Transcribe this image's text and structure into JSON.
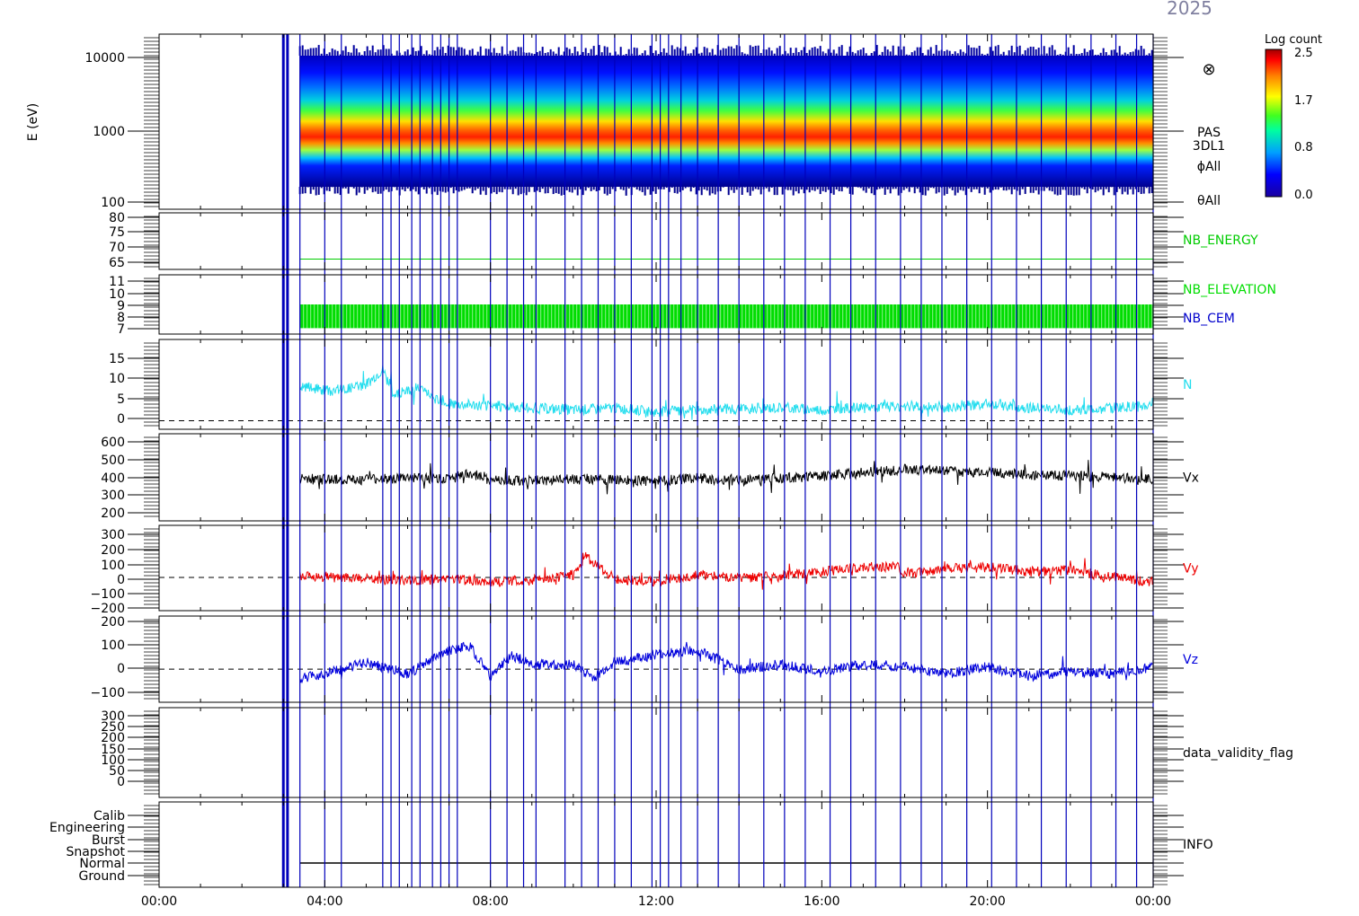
{
  "header": {
    "date_text": "2025"
  },
  "colorbar": {
    "title": "Log count",
    "ticks": [
      "2.5",
      "1.7",
      "0.8",
      "0.0"
    ]
  },
  "chart_data": {
    "type": "line",
    "x_axis": {
      "tick_labels": [
        "00:00",
        "04:00",
        "08:00",
        "12:00",
        "16:00",
        "20:00",
        "00:00"
      ],
      "range_hours": [
        0,
        24
      ]
    },
    "panels": [
      {
        "id": "spectrogram",
        "type": "heatmap",
        "ylabel": "E (eV)",
        "yscale": "log",
        "ylim": [
          100,
          15000
        ],
        "ytick_labels": [
          "10000",
          "1000",
          "100"
        ],
        "right_labels": [
          "PAS",
          "3DL1",
          "ϕAll",
          "θAll"
        ],
        "peak_energy_eV": 900,
        "data_start_hour": 3.4,
        "marker_symbol": "⊗"
      },
      {
        "id": "nb_energy",
        "ytick_labels": [
          "80",
          "75",
          "70",
          "65"
        ],
        "ylim": [
          60,
          82
        ],
        "series": [
          {
            "name": "NB_ENERGY",
            "color": "#00cc00",
            "constant_value": 64
          }
        ]
      },
      {
        "id": "nb_elevation",
        "ytick_labels": [
          "11",
          "10",
          "9",
          "8",
          "7"
        ],
        "ylim": [
          6.5,
          11.5
        ],
        "series": [
          {
            "name": "NB_ELEVATION",
            "color": "#00dd00",
            "range": [
              7,
              9
            ]
          },
          {
            "name": "NB_CEM",
            "color": "#0000cc"
          }
        ]
      },
      {
        "id": "density",
        "ytick_labels": [
          "15",
          "10",
          "5",
          "0"
        ],
        "ylim": [
          -2,
          19
        ],
        "zero_line": true,
        "series": [
          {
            "name": "N",
            "color": "#22ddee",
            "points": [
              [
                3.4,
                8
              ],
              [
                4.2,
                7
              ],
              [
                5,
                8.5
              ],
              [
                5.4,
                12
              ],
              [
                5.7,
                6
              ],
              [
                6.2,
                8
              ],
              [
                7,
                4
              ],
              [
                8,
                3.5
              ],
              [
                9,
                3
              ],
              [
                10,
                2.5
              ],
              [
                11,
                3
              ],
              [
                12,
                2
              ],
              [
                13,
                2.5
              ],
              [
                14,
                2.8
              ],
              [
                15,
                3
              ],
              [
                16,
                2.5
              ],
              [
                17,
                3
              ],
              [
                18,
                3.5
              ],
              [
                19,
                3
              ],
              [
                20,
                4
              ],
              [
                21,
                3
              ],
              [
                22,
                2.5
              ],
              [
                23,
                3
              ],
              [
                24,
                3.5
              ]
            ]
          }
        ]
      },
      {
        "id": "vx",
        "ytick_labels": [
          "600",
          "500",
          "400",
          "300",
          "200"
        ],
        "ylim": [
          160,
          650
        ],
        "series": [
          {
            "name": "Vx",
            "color": "#000000",
            "points": [
              [
                3.4,
                395
              ],
              [
                5,
                390
              ],
              [
                6,
                400
              ],
              [
                7,
                395
              ],
              [
                7.5,
                430
              ],
              [
                8,
                390
              ],
              [
                9,
                385
              ],
              [
                10,
                395
              ],
              [
                11,
                390
              ],
              [
                12,
                385
              ],
              [
                13,
                400
              ],
              [
                14,
                385
              ],
              [
                15,
                400
              ],
              [
                16,
                410
              ],
              [
                17,
                430
              ],
              [
                18,
                450
              ],
              [
                19,
                440
              ],
              [
                20,
                430
              ],
              [
                21,
                420
              ],
              [
                22,
                415
              ],
              [
                23,
                405
              ],
              [
                24,
                395
              ]
            ]
          }
        ]
      },
      {
        "id": "vy",
        "ytick_labels": [
          "300",
          "200",
          "100",
          "0",
          "−100",
          "−200"
        ],
        "ylim": [
          -230,
          360
        ],
        "zero_line": true,
        "series": [
          {
            "name": "Vy",
            "color": "#ee0000",
            "points": [
              [
                3.4,
                10
              ],
              [
                5,
                -10
              ],
              [
                6,
                -20
              ],
              [
                7,
                -10
              ],
              [
                8,
                -30
              ],
              [
                9,
                -20
              ],
              [
                10,
                20
              ],
              [
                10.3,
                140
              ],
              [
                11,
                -10
              ],
              [
                12,
                -30
              ],
              [
                13,
                20
              ],
              [
                14,
                -10
              ],
              [
                15,
                10
              ],
              [
                16,
                40
              ],
              [
                17,
                70
              ],
              [
                17.8,
                80
              ],
              [
                18,
                20
              ],
              [
                19,
                60
              ],
              [
                20,
                70
              ],
              [
                21,
                40
              ],
              [
                22,
                50
              ],
              [
                23,
                0
              ],
              [
                24,
                -30
              ]
            ]
          }
        ]
      },
      {
        "id": "vz",
        "ytick_labels": [
          "200",
          "100",
          "0",
          "−100"
        ],
        "ylim": [
          -140,
          225
        ],
        "zero_line": true,
        "series": [
          {
            "name": "Vz",
            "color": "#0000dd",
            "points": [
              [
                3.4,
                -40
              ],
              [
                4,
                -20
              ],
              [
                5,
                30
              ],
              [
                6,
                -20
              ],
              [
                7,
                80
              ],
              [
                7.5,
                100
              ],
              [
                8,
                -30
              ],
              [
                8.5,
                60
              ],
              [
                9,
                20
              ],
              [
                10,
                20
              ],
              [
                10.5,
                -40
              ],
              [
                11,
                30
              ],
              [
                12,
                60
              ],
              [
                13,
                80
              ],
              [
                14,
                0
              ],
              [
                15,
                20
              ],
              [
                16,
                -10
              ],
              [
                17,
                20
              ],
              [
                18,
                10
              ],
              [
                19,
                -20
              ],
              [
                20,
                10
              ],
              [
                21,
                -30
              ],
              [
                22,
                -10
              ],
              [
                23,
                -20
              ],
              [
                24,
                10
              ]
            ]
          }
        ]
      },
      {
        "id": "validity",
        "ytick_labels": [
          "300",
          "250",
          "200",
          "150",
          "100",
          "50",
          "0"
        ],
        "ylim": [
          -40,
          310
        ],
        "series": [
          {
            "name": "data_validity_flag"
          }
        ]
      },
      {
        "id": "info",
        "ytick_labels": [
          "Calib",
          "Engineering",
          "Burst",
          "Snapshot",
          "Normal",
          "Ground"
        ],
        "series": [
          {
            "name": "INFO",
            "normal_from_hour": 3.4
          }
        ]
      }
    ],
    "event_line_hours": [
      3.0,
      3.1,
      3.4,
      4.0,
      4.4,
      5.4,
      5.6,
      5.8,
      6.1,
      6.3,
      6.6,
      6.8,
      7.0,
      7.2,
      8.0,
      8.4,
      8.8,
      9.1,
      9.8,
      10.2,
      10.6,
      11.0,
      11.4,
      11.9,
      12.1,
      12.3,
      12.6,
      13.0,
      13.5,
      14.0,
      14.6,
      15.1,
      15.6,
      16.2,
      16.7,
      17.3,
      17.9,
      18.4,
      18.9,
      19.5,
      20.1,
      20.7,
      21.3,
      21.9,
      22.5,
      23.1,
      23.6,
      24.0
    ],
    "event_line_color": "#0000bb"
  }
}
